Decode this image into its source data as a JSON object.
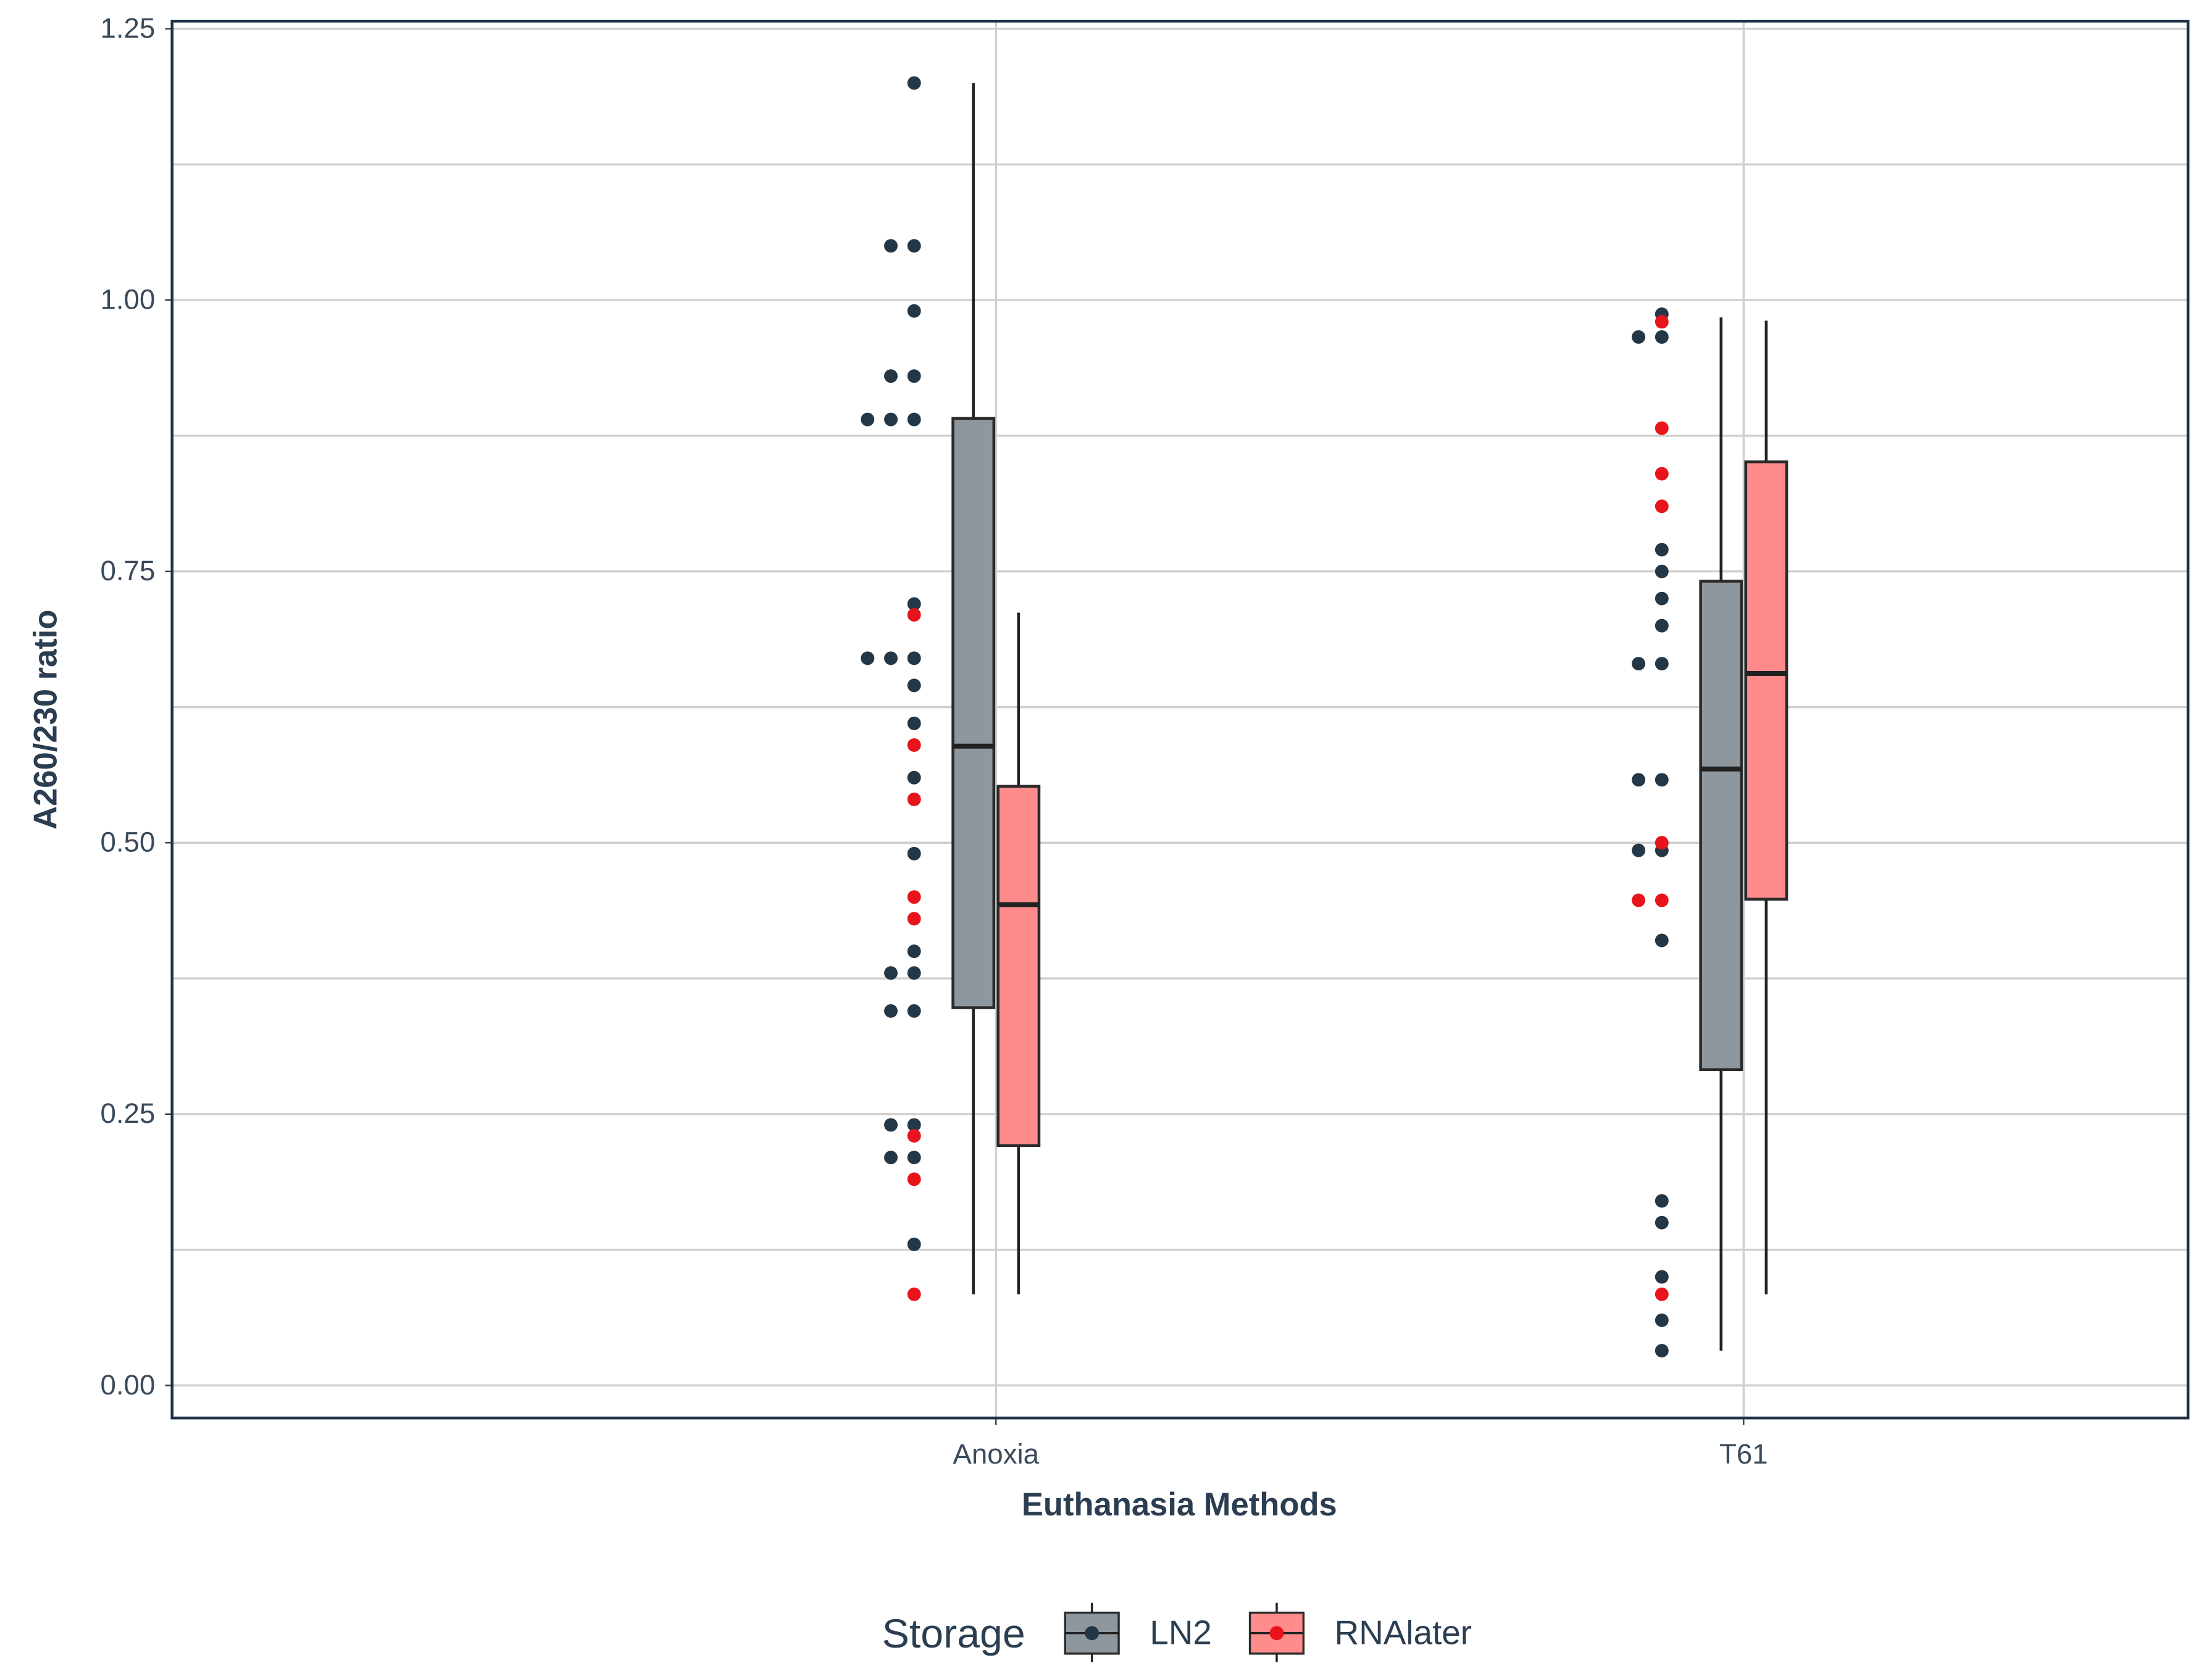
{
  "chart_data": {
    "type": "box",
    "xlabel": "Euthanasia Methods",
    "ylabel": "A260/230 ratio",
    "categories": [
      "Anoxia",
      "T61"
    ],
    "ylim": [
      -0.03,
      1.257
    ],
    "yticks": [
      {
        "value": 0,
        "label": "0.00"
      },
      0.25,
      {
        "value": 0.5,
        "label": "0.50"
      },
      0.75,
      {
        "value": 1,
        "label": "1.00"
      },
      1.25
    ],
    "minor_yticks": [
      0.125,
      0.375,
      0.625,
      0.875,
      1.125
    ],
    "grid": true,
    "legend_title": "Storage",
    "legend": "bottom",
    "series": [
      {
        "name": "LN2",
        "color": "#8f979e",
        "point_color": "#243746",
        "boxes": [
          {
            "whislo": 0.084,
            "q1": 0.348,
            "med": 0.589,
            "q3": 0.891,
            "whishi": 1.2
          },
          {
            "whislo": 0.032,
            "q1": 0.291,
            "med": 0.568,
            "q3": 0.741,
            "whishi": 0.984
          }
        ],
        "points": [
          [
            1.2,
            1.05,
            1.05,
            0.99,
            0.93,
            0.93,
            0.89,
            0.89,
            0.89,
            0.72,
            0.67,
            0.67,
            0.67,
            0.645,
            0.61,
            0.56,
            0.49,
            0.4,
            0.38,
            0.38,
            0.345,
            0.345,
            0.24,
            0.24,
            0.21,
            0.21,
            0.13
          ],
          [
            0.987,
            0.966,
            0.966,
            0.77,
            0.75,
            0.725,
            0.7,
            0.665,
            0.665,
            0.558,
            0.558,
            0.493,
            0.493,
            0.41,
            0.17,
            0.15,
            0.1,
            0.06,
            0.032
          ]
        ]
      },
      {
        "name": "RNAlater",
        "color": "#ff8b8b",
        "point_color": "#e8141c",
        "boxes": [
          {
            "whislo": 0.084,
            "q1": 0.221,
            "med": 0.443,
            "q3": 0.552,
            "whishi": 0.712
          },
          {
            "whislo": 0.084,
            "q1": 0.448,
            "med": 0.656,
            "q3": 0.851,
            "whishi": 0.981
          }
        ],
        "points": [
          [
            0.71,
            0.59,
            0.54,
            0.45,
            0.43,
            0.23,
            0.19,
            0.084
          ],
          [
            0.98,
            0.882,
            0.84,
            0.81,
            0.5,
            0.447,
            0.447,
            0.084
          ]
        ]
      }
    ]
  }
}
